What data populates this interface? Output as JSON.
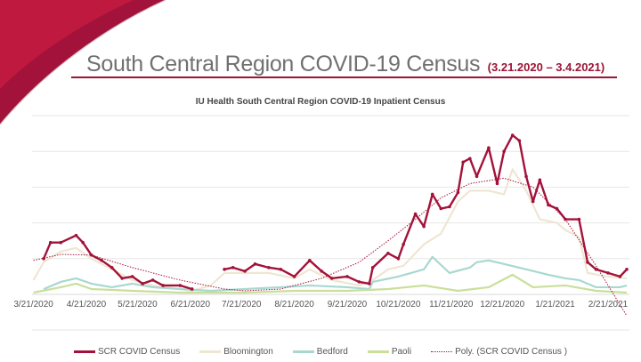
{
  "slide": {
    "title": "South Central Region COVID-19 Census",
    "date_range": "(3.21.2020 – 3.4.2021)",
    "accent_color": "#9b1535"
  },
  "chart_data": {
    "type": "line",
    "title": "IU Health South Central Region COVID-19 Inpatient Census",
    "xlabel": "",
    "ylabel": "",
    "y_tick_labels_shown": false,
    "y_units": "gridline steps (unlabeled axis)",
    "ylim": [
      0,
      5
    ],
    "grid": true,
    "legend_position": "bottom",
    "x_ticks": [
      "3/21/2020",
      "4/21/2020",
      "5/21/2020",
      "6/21/2020",
      "7/21/2020",
      "8/21/2020",
      "9/21/2020",
      "10/21/2020",
      "11/21/2020",
      "12/21/2020",
      "1/21/2021",
      "2/21/2021"
    ],
    "series": [
      {
        "name": "SCR COVID Census",
        "color": "#a3123a",
        "style": "solid-markers",
        "points": [
          [
            "3/27/2020",
            1.0
          ],
          [
            "3/31/2020",
            1.45
          ],
          [
            "4/6/2020",
            1.45
          ],
          [
            "4/15/2020",
            1.65
          ],
          [
            "4/19/2020",
            1.45
          ],
          [
            "4/24/2020",
            1.1
          ],
          [
            "4/30/2020",
            0.95
          ],
          [
            "5/6/2020",
            0.75
          ],
          [
            "5/12/2020",
            0.45
          ],
          [
            "5/18/2020",
            0.5
          ],
          [
            "5/24/2020",
            0.3
          ],
          [
            "5/30/2020",
            0.4
          ],
          [
            "6/5/2020",
            0.25
          ],
          [
            "6/15/2020",
            0.25
          ],
          [
            "6/22/2020",
            0.15
          ],
          [
            "7/3/2020",
            null
          ],
          [
            "7/11/2020",
            0.7
          ],
          [
            "7/16/2020",
            0.75
          ],
          [
            "7/23/2020",
            0.65
          ],
          [
            "7/29/2020",
            0.85
          ],
          [
            "8/6/2020",
            0.75
          ],
          [
            "8/13/2020",
            0.7
          ],
          [
            "8/21/2020",
            0.5
          ],
          [
            "8/30/2020",
            0.95
          ],
          [
            "9/6/2020",
            0.65
          ],
          [
            "9/12/2020",
            0.45
          ],
          [
            "9/21/2020",
            0.5
          ],
          [
            "9/28/2020",
            0.35
          ],
          [
            "10/4/2020",
            0.3
          ],
          [
            "10/6/2020",
            0.75
          ],
          [
            "10/15/2020",
            1.15
          ],
          [
            "10/21/2020",
            1.0
          ],
          [
            "10/24/2020",
            1.4
          ],
          [
            "10/31/2020",
            2.25
          ],
          [
            "11/5/2020",
            1.9
          ],
          [
            "11/10/2020",
            2.8
          ],
          [
            "11/15/2020",
            2.4
          ],
          [
            "11/20/2020",
            2.45
          ],
          [
            "11/25/2020",
            2.85
          ],
          [
            "11/28/2020",
            3.7
          ],
          [
            "12/2/2020",
            3.8
          ],
          [
            "12/6/2020",
            3.3
          ],
          [
            "12/13/2020",
            4.1
          ],
          [
            "12/18/2020",
            3.1
          ],
          [
            "12/22/2020",
            4.0
          ],
          [
            "12/27/2020",
            4.45
          ],
          [
            "12/31/2020",
            4.3
          ],
          [
            "1/4/2021",
            3.3
          ],
          [
            "1/8/2021",
            2.6
          ],
          [
            "1/12/2021",
            3.2
          ],
          [
            "1/17/2021",
            2.5
          ],
          [
            "1/22/2021",
            2.4
          ],
          [
            "1/27/2021",
            2.1
          ],
          [
            "2/4/2021",
            2.1
          ],
          [
            "2/9/2021",
            0.9
          ],
          [
            "2/14/2021",
            0.7
          ],
          [
            "2/21/2021",
            0.6
          ],
          [
            "2/28/2021",
            0.5
          ],
          [
            "3/4/2021",
            0.7
          ]
        ]
      },
      {
        "name": "Bloomington",
        "color": "#efe6d2",
        "style": "solid",
        "points": [
          [
            "3/21/2020",
            0.4
          ],
          [
            "3/27/2020",
            0.9
          ],
          [
            "4/6/2020",
            1.2
          ],
          [
            "4/15/2020",
            1.3
          ],
          [
            "4/24/2020",
            1.0
          ],
          [
            "5/6/2020",
            0.7
          ],
          [
            "5/18/2020",
            0.4
          ],
          [
            "5/30/2020",
            0.25
          ],
          [
            "6/15/2020",
            0.15
          ],
          [
            "6/22/2020",
            0.1
          ],
          [
            "7/3/2020",
            0.25
          ],
          [
            "7/11/2020",
            0.6
          ],
          [
            "7/23/2020",
            0.6
          ],
          [
            "8/6/2020",
            0.6
          ],
          [
            "8/21/2020",
            0.45
          ],
          [
            "8/30/2020",
            0.7
          ],
          [
            "9/12/2020",
            0.4
          ],
          [
            "9/28/2020",
            0.25
          ],
          [
            "10/6/2020",
            0.4
          ],
          [
            "10/15/2020",
            0.7
          ],
          [
            "10/24/2020",
            0.8
          ],
          [
            "11/5/2020",
            1.4
          ],
          [
            "11/15/2020",
            1.7
          ],
          [
            "11/25/2020",
            2.6
          ],
          [
            "12/2/2020",
            2.9
          ],
          [
            "12/13/2020",
            2.9
          ],
          [
            "12/22/2020",
            2.8
          ],
          [
            "12/27/2020",
            3.5
          ],
          [
            "1/4/2021",
            2.9
          ],
          [
            "1/12/2021",
            2.1
          ],
          [
            "1/22/2021",
            2.0
          ],
          [
            "1/27/2021",
            1.8
          ],
          [
            "2/4/2021",
            1.6
          ],
          [
            "2/9/2021",
            0.6
          ],
          [
            "2/21/2021",
            0.5
          ],
          [
            "3/4/2021",
            0.45
          ]
        ]
      },
      {
        "name": "Bedford",
        "color": "#a8d8d0",
        "style": "solid",
        "points": [
          [
            "3/27/2020",
            0.15
          ],
          [
            "4/6/2020",
            0.35
          ],
          [
            "4/15/2020",
            0.45
          ],
          [
            "4/24/2020",
            0.3
          ],
          [
            "5/6/2020",
            0.2
          ],
          [
            "5/18/2020",
            0.3
          ],
          [
            "5/30/2020",
            0.2
          ],
          [
            "6/15/2020",
            0.15
          ],
          [
            "7/3/2020",
            0.1
          ],
          [
            "7/23/2020",
            0.15
          ],
          [
            "8/13/2020",
            0.2
          ],
          [
            "8/30/2020",
            0.25
          ],
          [
            "9/21/2020",
            0.2
          ],
          [
            "10/4/2020",
            0.15
          ],
          [
            "10/6/2020",
            0.35
          ],
          [
            "10/21/2020",
            0.5
          ],
          [
            "11/5/2020",
            0.7
          ],
          [
            "11/10/2020",
            1.05
          ],
          [
            "11/20/2020",
            0.6
          ],
          [
            "12/2/2020",
            0.75
          ],
          [
            "12/6/2020",
            0.9
          ],
          [
            "12/13/2020",
            0.95
          ],
          [
            "12/22/2020",
            0.85
          ],
          [
            "1/4/2021",
            0.7
          ],
          [
            "1/17/2021",
            0.55
          ],
          [
            "1/27/2021",
            0.45
          ],
          [
            "2/4/2021",
            0.4
          ],
          [
            "2/14/2021",
            0.2
          ],
          [
            "2/28/2021",
            0.2
          ],
          [
            "3/4/2021",
            0.25
          ]
        ]
      },
      {
        "name": "Paoli",
        "color": "#c9df9a",
        "style": "solid",
        "points": [
          [
            "3/21/2020",
            0.05
          ],
          [
            "4/6/2020",
            0.2
          ],
          [
            "4/15/2020",
            0.3
          ],
          [
            "4/24/2020",
            0.15
          ],
          [
            "5/18/2020",
            0.1
          ],
          [
            "6/15/2020",
            0.05
          ],
          [
            "7/23/2020",
            0.05
          ],
          [
            "8/21/2020",
            0.1
          ],
          [
            "9/21/2020",
            0.1
          ],
          [
            "10/15/2020",
            0.15
          ],
          [
            "11/5/2020",
            0.25
          ],
          [
            "11/25/2020",
            0.1
          ],
          [
            "12/13/2020",
            0.2
          ],
          [
            "12/27/2020",
            0.55
          ],
          [
            "1/8/2021",
            0.2
          ],
          [
            "1/27/2021",
            0.25
          ],
          [
            "2/14/2021",
            0.1
          ],
          [
            "3/4/2021",
            0.05
          ]
        ]
      },
      {
        "name": "Poly. (SCR COVID Census )",
        "color": "#a3123a",
        "style": "dotted",
        "points": [
          [
            "3/21/2020",
            0.95
          ],
          [
            "4/6/2020",
            1.12
          ],
          [
            "4/24/2020",
            1.1
          ],
          [
            "5/18/2020",
            0.75
          ],
          [
            "6/15/2020",
            0.4
          ],
          [
            "7/11/2020",
            0.15
          ],
          [
            "7/23/2020",
            0.1
          ],
          [
            "8/13/2020",
            0.15
          ],
          [
            "9/6/2020",
            0.45
          ],
          [
            "9/28/2020",
            0.9
          ],
          [
            "10/15/2020",
            1.5
          ],
          [
            "10/31/2020",
            2.1
          ],
          [
            "11/15/2020",
            2.7
          ],
          [
            "12/2/2020",
            3.1
          ],
          [
            "12/22/2020",
            3.25
          ],
          [
            "1/8/2021",
            3.0
          ],
          [
            "1/27/2021",
            2.1
          ],
          [
            "2/14/2021",
            0.8
          ],
          [
            "3/4/2021",
            -0.6
          ]
        ]
      }
    ]
  }
}
